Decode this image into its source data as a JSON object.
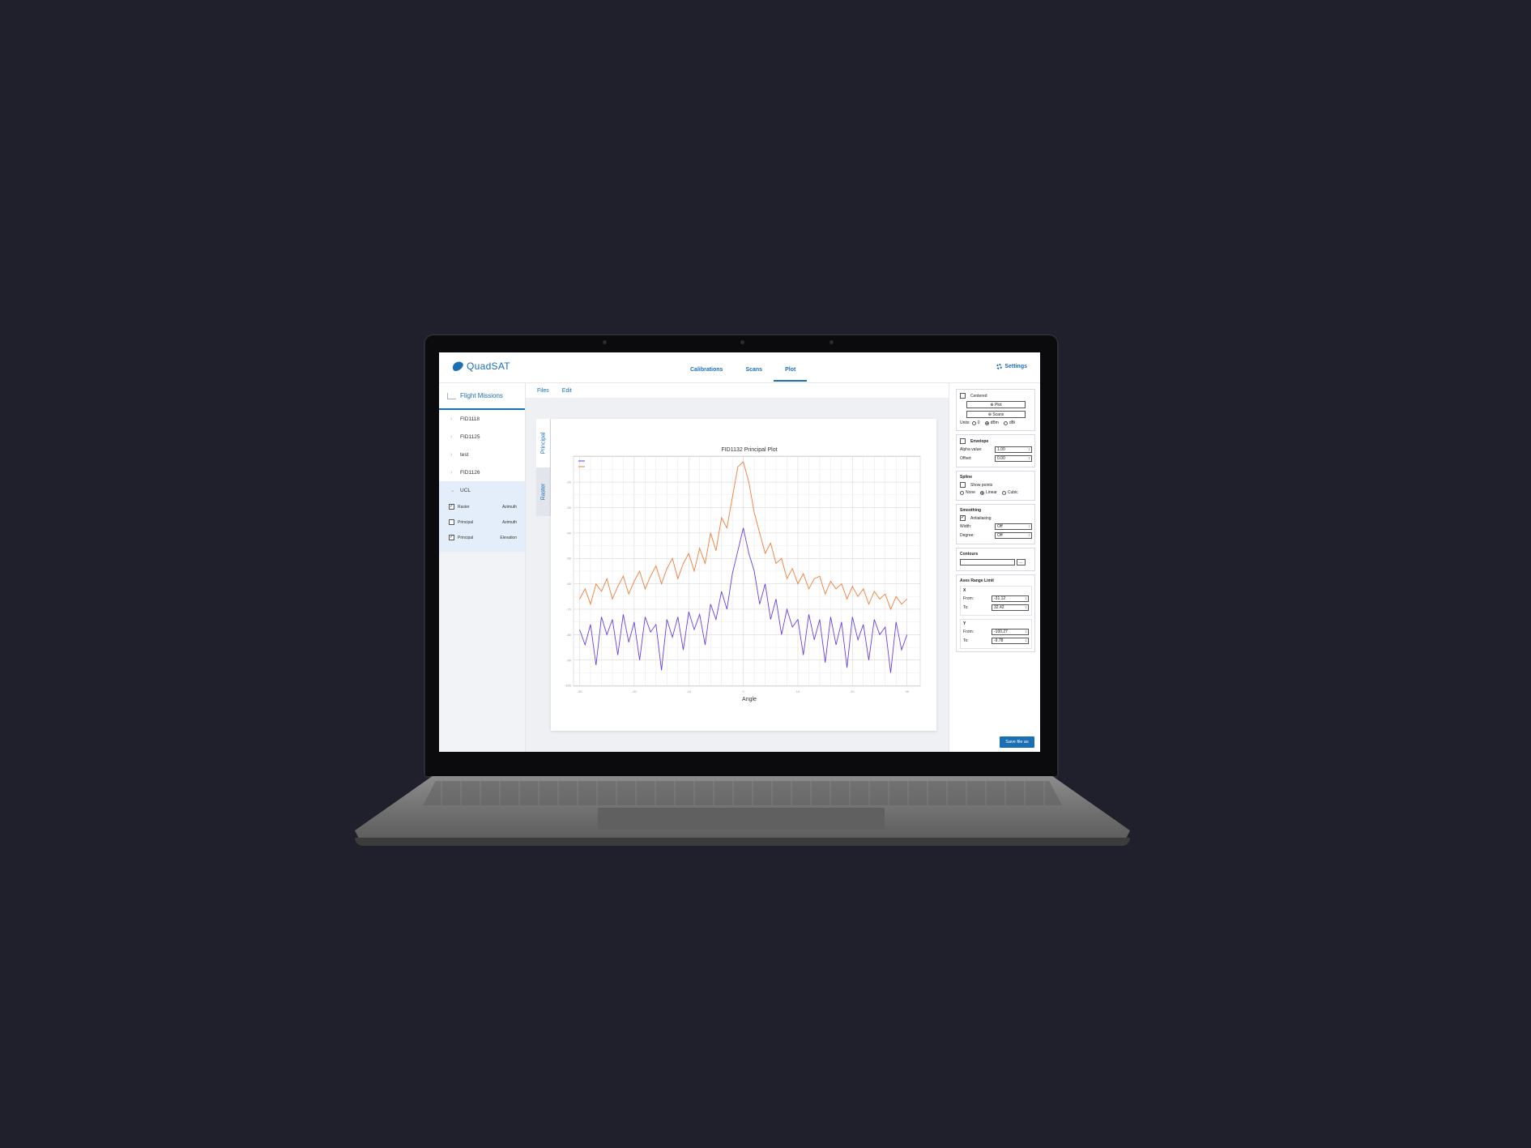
{
  "app": {
    "brand": "QuadSAT"
  },
  "nav": {
    "tabs": [
      "Calibrations",
      "Scans",
      "Plot"
    ],
    "active": "Plot",
    "settings_label": "Settings"
  },
  "sidebar": {
    "title": "Flight Missions",
    "items": [
      "FID1118",
      "FID1125",
      "test",
      "FID1126",
      "UCL"
    ],
    "sub_items": [
      {
        "label": "Raster",
        "type": "Azimuth",
        "checked": true
      },
      {
        "label": "Principal",
        "type": "Azimuth",
        "checked": false
      },
      {
        "label": "Principal",
        "type": "Elevation",
        "checked": true
      }
    ]
  },
  "subnav": {
    "files": "Files",
    "edit": "Edit"
  },
  "view_tabs": [
    "Principal",
    "Raster"
  ],
  "panel": {
    "centered": "Centered",
    "plot_btn": "Plot",
    "scans_btn": "Scans",
    "units_label": "Units:",
    "units": [
      "0",
      "dBm",
      "dBi"
    ],
    "envelope": "Envelope",
    "alpha_label": "Alpha value:",
    "alpha_value": "1.00",
    "offset_label": "Offset:",
    "offset_value": "0.00",
    "spline": "Spline",
    "show_points": "Show points",
    "spline_opts": [
      "None",
      "Linear",
      "Cubic"
    ],
    "smoothing": "Smoothing",
    "antialiasing": "Antialiasing",
    "width_label": "Width:",
    "width_value": "Off",
    "degree_label": "Degree:",
    "degree_value": "Off",
    "contours": "Contours",
    "contours_btn": "...",
    "axes_range": "Axes Range Limit",
    "x_label": "X",
    "y_label": "Y",
    "from_label": "From:",
    "to_label": "To:",
    "x_from": "-31.12",
    "x_to": "32.42",
    "y_from": "-100.27",
    "y_to": "-9.78",
    "save_label": "Save file as"
  },
  "colors": {
    "accent": "#1b6fb5",
    "series_purple": "#6a3de8",
    "series_orange": "#f07c3a"
  },
  "chart_data": {
    "type": "line",
    "title": "FID1132 Principal Plot",
    "xlabel": "Angle",
    "ylabel": "",
    "xlim": [
      -31.12,
      32.42
    ],
    "ylim": [
      -100.27,
      -9.78
    ],
    "grid": true,
    "legend_position": "top-left",
    "series": [
      {
        "color": "#6a3de8",
        "x": [
          -30,
          -29,
          -28,
          -27,
          -26,
          -25,
          -24,
          -23,
          -22,
          -21,
          -20,
          -19,
          -18,
          -17,
          -16,
          -15,
          -14,
          -13,
          -12,
          -11,
          -10,
          -9,
          -8,
          -7,
          -6,
          -5,
          -4,
          -3,
          -2,
          -1,
          0,
          1,
          2,
          3,
          4,
          5,
          6,
          7,
          8,
          9,
          10,
          11,
          12,
          13,
          14,
          15,
          16,
          17,
          18,
          19,
          20,
          21,
          22,
          23,
          24,
          25,
          26,
          27,
          28,
          29,
          30
        ],
        "y": [
          -78,
          -84,
          -76,
          -92,
          -73,
          -80,
          -74,
          -88,
          -72,
          -83,
          -75,
          -90,
          -73,
          -79,
          -76,
          -94,
          -74,
          -81,
          -73,
          -86,
          -71,
          -78,
          -72,
          -84,
          -68,
          -74,
          -63,
          -70,
          -56,
          -47,
          -38,
          -48,
          -55,
          -68,
          -60,
          -74,
          -66,
          -80,
          -70,
          -77,
          -74,
          -88,
          -72,
          -82,
          -74,
          -91,
          -73,
          -84,
          -75,
          -93,
          -73,
          -82,
          -76,
          -90,
          -74,
          -80,
          -77,
          -95,
          -75,
          -86,
          -80
        ]
      },
      {
        "color": "#f07c3a",
        "x": [
          -30,
          -29,
          -28,
          -27,
          -26,
          -25,
          -24,
          -23,
          -22,
          -21,
          -20,
          -19,
          -18,
          -17,
          -16,
          -15,
          -14,
          -13,
          -12,
          -11,
          -10,
          -9,
          -8,
          -7,
          -6,
          -5,
          -4,
          -3,
          -2,
          -1,
          0,
          1,
          2,
          3,
          4,
          5,
          6,
          7,
          8,
          9,
          10,
          11,
          12,
          13,
          14,
          15,
          16,
          17,
          18,
          19,
          20,
          21,
          22,
          23,
          24,
          25,
          26,
          27,
          28,
          29,
          30
        ],
        "y": [
          -66,
          -62,
          -68,
          -60,
          -63,
          -58,
          -66,
          -61,
          -57,
          -64,
          -59,
          -55,
          -62,
          -57,
          -53,
          -60,
          -54,
          -50,
          -58,
          -52,
          -48,
          -55,
          -46,
          -52,
          -40,
          -47,
          -34,
          -38,
          -26,
          -14,
          -12,
          -20,
          -32,
          -40,
          -48,
          -44,
          -52,
          -50,
          -58,
          -54,
          -60,
          -56,
          -62,
          -58,
          -57,
          -64,
          -59,
          -62,
          -60,
          -66,
          -61,
          -65,
          -62,
          -68,
          -63,
          -66,
          -64,
          -70,
          -65,
          -68,
          -66
        ]
      }
    ]
  }
}
